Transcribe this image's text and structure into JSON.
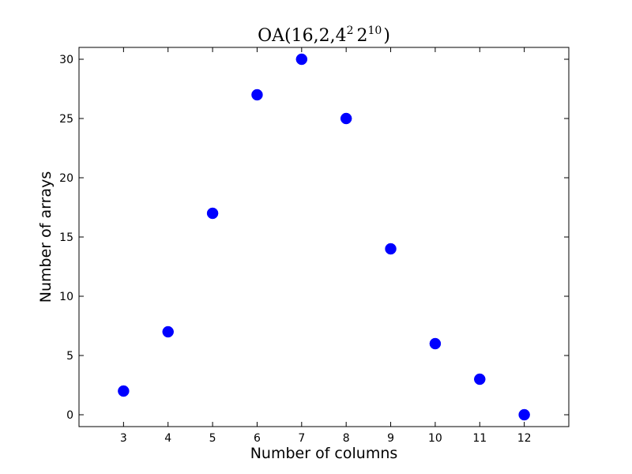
{
  "chart_data": {
    "type": "scatter",
    "title": {
      "prefix": "OA(16,2,4",
      "sup1": "2",
      "mid": "2",
      "sup2": "10",
      "suffix": ")"
    },
    "xlabel": "Number of columns",
    "ylabel": "Number of arrays",
    "xlim": [
      2,
      13
    ],
    "ylim": [
      -1,
      31
    ],
    "x_ticks": [
      3,
      4,
      5,
      6,
      7,
      8,
      9,
      10,
      11,
      12
    ],
    "y_ticks": [
      0,
      5,
      10,
      15,
      20,
      25,
      30
    ],
    "grid": false,
    "legend": "none",
    "series": [
      {
        "color": "#0000ff",
        "marker": "circle",
        "points": [
          {
            "x": 3,
            "y": 2
          },
          {
            "x": 4,
            "y": 7
          },
          {
            "x": 5,
            "y": 17
          },
          {
            "x": 6,
            "y": 27
          },
          {
            "x": 7,
            "y": 30
          },
          {
            "x": 8,
            "y": 25
          },
          {
            "x": 9,
            "y": 14
          },
          {
            "x": 10,
            "y": 6
          },
          {
            "x": 11,
            "y": 3
          },
          {
            "x": 12,
            "y": 0
          }
        ]
      }
    ]
  }
}
